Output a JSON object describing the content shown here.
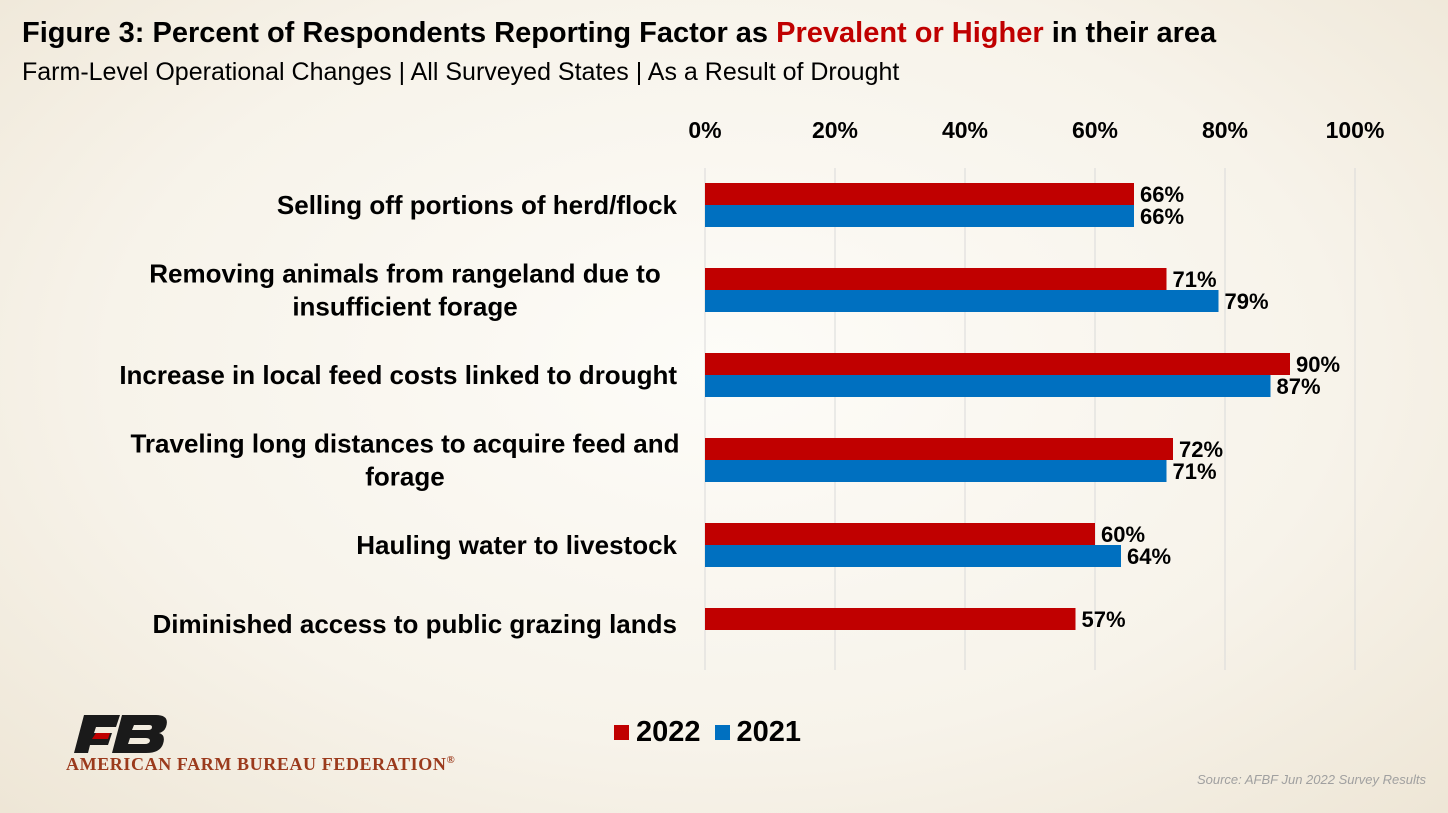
{
  "title": {
    "prefix": "Figure 3: Percent of Respondents Reporting Factor as ",
    "highlight": "Prevalent or Higher",
    "suffix": " in their area"
  },
  "subtitle": "Farm-Level Operational Changes | All Surveyed States | As a Result of Drought",
  "logo": {
    "org_name": "AMERICAN FARM BUREAU FEDERATION",
    "org_mark": "®",
    "icon": "fb-logo-icon"
  },
  "source": "Source: AFBF Jun 2022 Survey Results",
  "colors": {
    "s2022": "#c00000",
    "s2021": "#0070c0",
    "grid": "#d9d9d9"
  },
  "chart_data": {
    "type": "bar",
    "orientation": "horizontal",
    "categories": [
      [
        "Selling off portions of herd/flock"
      ],
      [
        "Removing animals from rangeland due to",
        "insufficient forage"
      ],
      [
        "Increase in local feed costs linked to drought"
      ],
      [
        "Traveling long distances to acquire feed and",
        "forage"
      ],
      [
        "Hauling water to livestock"
      ],
      [
        "Diminished access to public grazing lands"
      ]
    ],
    "series": [
      {
        "name": "2022",
        "color": "#c00000",
        "values": [
          66,
          71,
          90,
          72,
          60,
          57
        ],
        "labels": [
          "66%",
          "71%",
          "90%",
          "72%",
          "60%",
          "57%"
        ]
      },
      {
        "name": "2021",
        "color": "#0070c0",
        "values": [
          66,
          79,
          87,
          71,
          64,
          null
        ],
        "labels": [
          "66%",
          "79%",
          "87%",
          "71%",
          "64%",
          ""
        ]
      }
    ],
    "xlim": [
      0,
      100
    ],
    "xticks": [
      "0%",
      "20%",
      "40%",
      "60%",
      "80%",
      "100%"
    ],
    "xaxis_position": "top",
    "grid": true,
    "legend_position": "bottom"
  }
}
